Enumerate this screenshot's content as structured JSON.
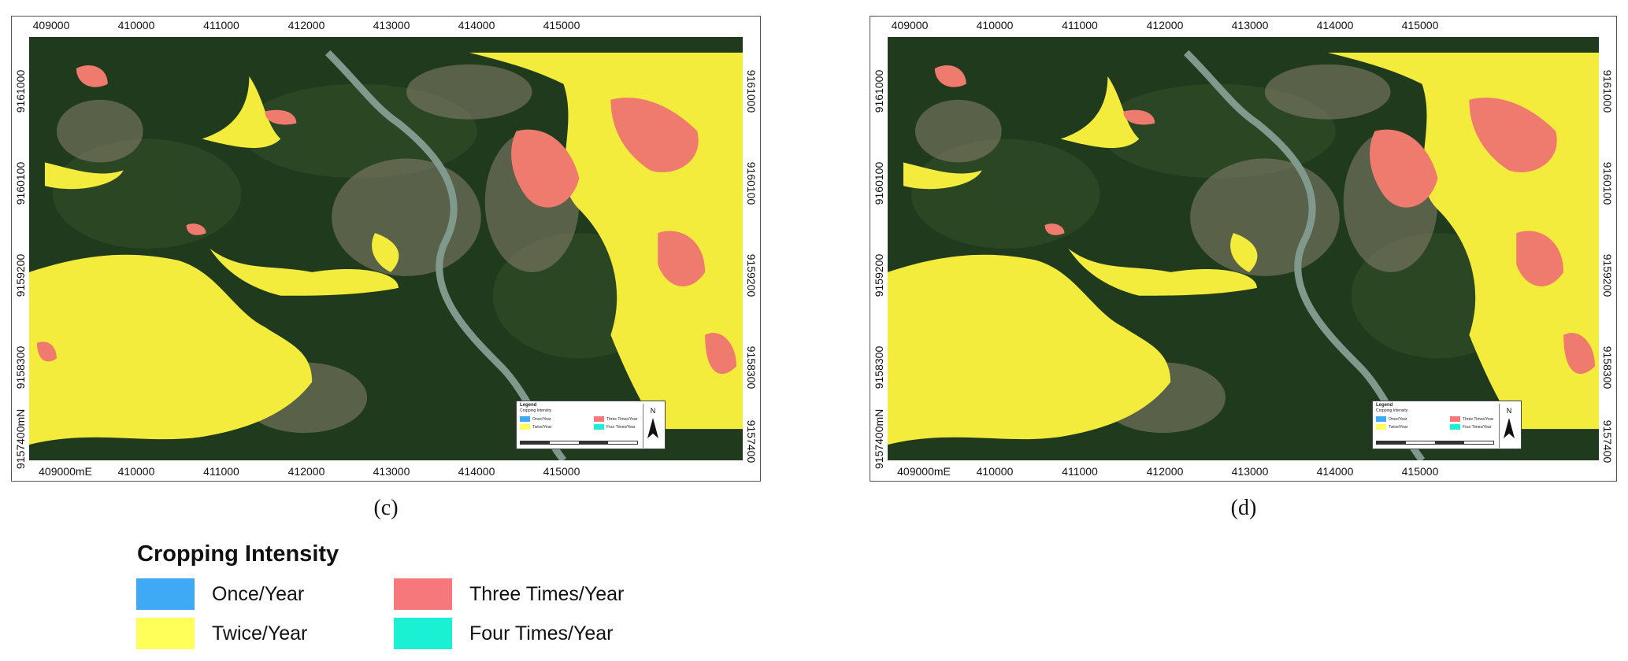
{
  "maps": [
    {
      "id": "c",
      "caption": "(c)",
      "top_ticks": [
        "409000",
        "410000",
        "411000",
        "412000",
        "413000",
        "414000",
        "415000"
      ],
      "bottom_ticks": [
        "409000mE",
        "410000",
        "411000",
        "412000",
        "413000",
        "414000",
        "415000"
      ],
      "left_ticks": [
        "9161000",
        "9160100",
        "9159200",
        "9158300",
        "9157400mN"
      ],
      "right_ticks": [
        "9161000",
        "9160100",
        "9159200",
        "9158300",
        "9157400"
      ],
      "inset_legend": {
        "title": "Legend",
        "subtitle": "Cropping Intensity",
        "items": [
          "Once/Year",
          "Three Times/Year",
          "Twice/Year",
          "Four Times/Year"
        ],
        "north": "N"
      }
    },
    {
      "id": "d",
      "caption": "(d)",
      "top_ticks": [
        "409000",
        "410000",
        "411000",
        "412000",
        "413000",
        "414000",
        "415000"
      ],
      "bottom_ticks": [
        "409000mE",
        "410000",
        "411000",
        "412000",
        "413000",
        "414000",
        "415000"
      ],
      "left_ticks": [
        "9161000",
        "9160100",
        "9159200",
        "9158300",
        "9157400mN"
      ],
      "right_ticks": [
        "9161000",
        "9160100",
        "9159200",
        "9158300",
        "9157400"
      ],
      "inset_legend": {
        "title": "Legend",
        "subtitle": "Cropping Intensity",
        "items": [
          "Once/Year",
          "Three Times/Year",
          "Twice/Year",
          "Four Times/Year"
        ],
        "north": "N"
      }
    }
  ],
  "legend": {
    "title": "Cropping Intensity",
    "items": [
      {
        "label": "Once/Year",
        "color": "#3fa9f5"
      },
      {
        "label": "Three Times/Year",
        "color": "#f7787a"
      },
      {
        "label": "Twice/Year",
        "color": "#ffff5a"
      },
      {
        "label": "Four Times/Year",
        "color": "#19f0d4"
      }
    ]
  },
  "colors": {
    "vegetation": "#1f3a1c",
    "urban": "#8a8270",
    "river": "#7f9a8c",
    "twice": "#f4ec3c",
    "three": "#ef7a6e"
  }
}
